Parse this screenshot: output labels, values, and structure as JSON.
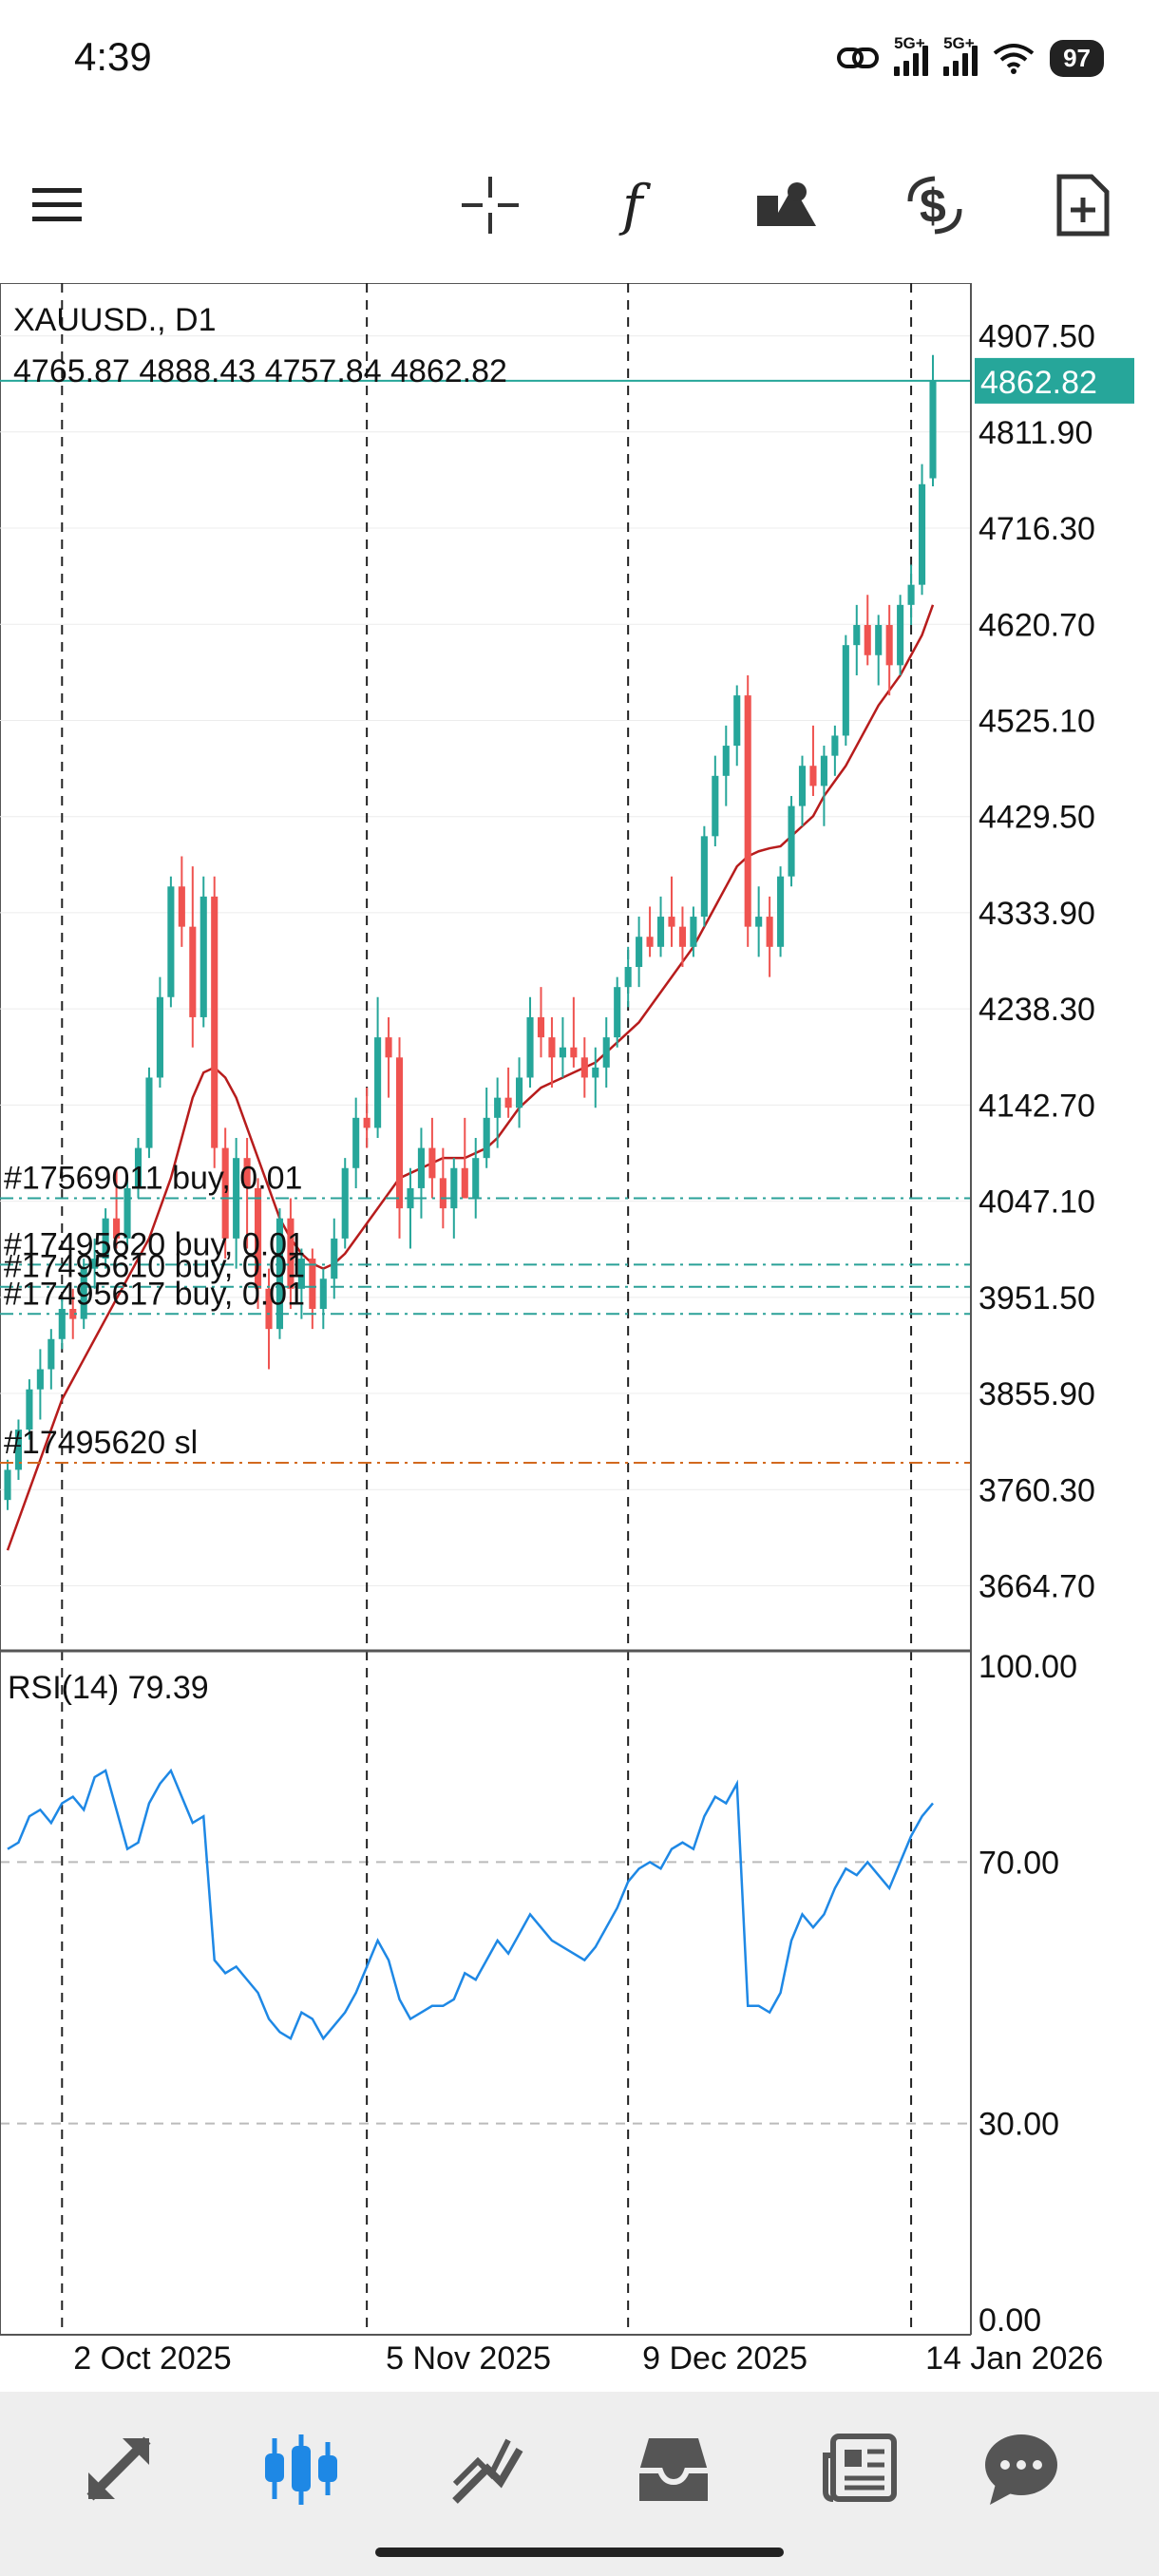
{
  "status_bar": {
    "time": "4:39",
    "signal_1_label": "5G+",
    "signal_2_label": "5G+",
    "battery": "97"
  },
  "toolbar": {
    "icons": [
      "menu-icon",
      "crosshair-icon",
      "indicators-icon",
      "objects-icon",
      "symbols-icon",
      "new-order-icon"
    ]
  },
  "chart": {
    "symbol_label": "XAUUSD., D1",
    "ohlc_line": "4765.87 4888.43 4757.84 4862.82",
    "current_price": "4862.82",
    "price_axis": [
      "4907.50",
      "4811.90",
      "4716.30",
      "4620.70",
      "4525.10",
      "4429.50",
      "4333.90",
      "4238.30",
      "4142.70",
      "4047.10",
      "3951.50",
      "3855.90",
      "3760.30",
      "3664.70"
    ],
    "orders": [
      {
        "label": "#17569011 buy, 0.01",
        "price": 4050,
        "color": "#2aa198"
      },
      {
        "label": "#17495620 buy, 0.01",
        "price": 3984,
        "color": "#2aa198"
      },
      {
        "label": "#17495610 buy, 0.01",
        "price": 3962,
        "color": "#2aa198"
      },
      {
        "label": "#17495617 buy, 0.01",
        "price": 3935,
        "color": "#2aa198"
      },
      {
        "label": "#17495620 sl",
        "price": 3787,
        "color": "#d2691e"
      }
    ],
    "rsi_label": "RSI(14) 79.39",
    "rsi_axis": [
      "100.00",
      "70.00",
      "30.00",
      "0.00"
    ],
    "date_axis": [
      "2 Oct 2025",
      "5 Nov 2025",
      "9 Dec 2025",
      "14 Jan 2026"
    ],
    "colors": {
      "bull": "#26a69a",
      "bear": "#ef5350",
      "ma": "#b71c1c",
      "rsi": "#1e88e5",
      "price_line": "#26a69a"
    }
  },
  "chart_data": {
    "type": "candlestick",
    "title": "XAUUSD., D1",
    "ylim": [
      3600,
      4960
    ],
    "ohlc": [
      [
        3750,
        3790,
        3740,
        3780
      ],
      [
        3780,
        3830,
        3770,
        3820
      ],
      [
        3820,
        3870,
        3810,
        3860
      ],
      [
        3860,
        3900,
        3830,
        3880
      ],
      [
        3880,
        3920,
        3860,
        3910
      ],
      [
        3910,
        3950,
        3900,
        3940
      ],
      [
        3940,
        3960,
        3910,
        3930
      ],
      [
        3930,
        3990,
        3920,
        3980
      ],
      [
        3980,
        4010,
        3960,
        3990
      ],
      [
        3990,
        4040,
        3980,
        4030
      ],
      [
        4030,
        4080,
        4000,
        4010
      ],
      [
        4010,
        4070,
        4000,
        4060
      ],
      [
        4060,
        4110,
        4050,
        4100
      ],
      [
        4100,
        4180,
        4090,
        4170
      ],
      [
        4170,
        4270,
        4160,
        4250
      ],
      [
        4250,
        4370,
        4240,
        4360
      ],
      [
        4360,
        4390,
        4300,
        4320
      ],
      [
        4320,
        4380,
        4200,
        4230
      ],
      [
        4230,
        4370,
        4220,
        4350
      ],
      [
        4350,
        4370,
        4080,
        4100
      ],
      [
        4100,
        4120,
        3990,
        4010
      ],
      [
        4010,
        4110,
        3980,
        4090
      ],
      [
        4090,
        4110,
        4000,
        4060
      ],
      [
        4060,
        4070,
        3940,
        3960
      ],
      [
        3960,
        3980,
        3880,
        3920
      ],
      [
        3920,
        4040,
        3910,
        4030
      ],
      [
        4030,
        4050,
        3940,
        3960
      ],
      [
        3960,
        4000,
        3930,
        3990
      ],
      [
        3990,
        4000,
        3920,
        3940
      ],
      [
        3940,
        3980,
        3920,
        3970
      ],
      [
        3970,
        4030,
        3950,
        4010
      ],
      [
        4010,
        4090,
        4000,
        4080
      ],
      [
        4080,
        4150,
        4060,
        4130
      ],
      [
        4130,
        4160,
        4100,
        4120
      ],
      [
        4120,
        4250,
        4110,
        4210
      ],
      [
        4210,
        4230,
        4150,
        4190
      ],
      [
        4190,
        4210,
        4010,
        4040
      ],
      [
        4040,
        4080,
        4000,
        4060
      ],
      [
        4060,
        4120,
        4030,
        4100
      ],
      [
        4100,
        4130,
        4050,
        4070
      ],
      [
        4070,
        4100,
        4020,
        4040
      ],
      [
        4040,
        4090,
        4010,
        4080
      ],
      [
        4080,
        4130,
        4050,
        4050
      ],
      [
        4050,
        4110,
        4030,
        4090
      ],
      [
        4090,
        4160,
        4080,
        4130
      ],
      [
        4130,
        4170,
        4100,
        4150
      ],
      [
        4150,
        4180,
        4130,
        4140
      ],
      [
        4140,
        4190,
        4120,
        4170
      ],
      [
        4170,
        4250,
        4160,
        4230
      ],
      [
        4230,
        4260,
        4190,
        4210
      ],
      [
        4210,
        4230,
        4160,
        4190
      ],
      [
        4190,
        4230,
        4170,
        4200
      ],
      [
        4200,
        4250,
        4180,
        4190
      ],
      [
        4190,
        4210,
        4150,
        4170
      ],
      [
        4170,
        4200,
        4140,
        4180
      ],
      [
        4180,
        4230,
        4160,
        4210
      ],
      [
        4210,
        4270,
        4200,
        4260
      ],
      [
        4260,
        4300,
        4240,
        4280
      ],
      [
        4280,
        4330,
        4260,
        4310
      ],
      [
        4310,
        4340,
        4290,
        4300
      ],
      [
        4300,
        4350,
        4290,
        4330
      ],
      [
        4330,
        4370,
        4300,
        4320
      ],
      [
        4320,
        4340,
        4280,
        4300
      ],
      [
        4300,
        4340,
        4290,
        4330
      ],
      [
        4330,
        4420,
        4320,
        4410
      ],
      [
        4410,
        4490,
        4400,
        4470
      ],
      [
        4470,
        4520,
        4440,
        4500
      ],
      [
        4500,
        4560,
        4480,
        4550
      ],
      [
        4550,
        4570,
        4300,
        4320
      ],
      [
        4320,
        4360,
        4290,
        4330
      ],
      [
        4330,
        4350,
        4270,
        4300
      ],
      [
        4300,
        4380,
        4290,
        4370
      ],
      [
        4370,
        4450,
        4360,
        4440
      ],
      [
        4440,
        4490,
        4420,
        4480
      ],
      [
        4480,
        4520,
        4450,
        4460
      ],
      [
        4460,
        4500,
        4420,
        4490
      ],
      [
        4490,
        4520,
        4470,
        4510
      ],
      [
        4510,
        4610,
        4500,
        4600
      ],
      [
        4600,
        4640,
        4570,
        4620
      ],
      [
        4620,
        4650,
        4580,
        4590
      ],
      [
        4590,
        4630,
        4560,
        4620
      ],
      [
        4620,
        4640,
        4550,
        4580
      ],
      [
        4580,
        4650,
        4570,
        4640
      ],
      [
        4640,
        4680,
        4620,
        4660
      ],
      [
        4660,
        4780,
        4650,
        4760
      ],
      [
        4765.87,
        4888.43,
        4757.84,
        4862.82
      ]
    ],
    "ma": [
      3700,
      3730,
      3760,
      3790,
      3820,
      3850,
      3870,
      3890,
      3910,
      3930,
      3950,
      3970,
      3990,
      4010,
      4040,
      4070,
      4110,
      4150,
      4175,
      4180,
      4170,
      4150,
      4120,
      4090,
      4060,
      4030,
      4010,
      3995,
      3985,
      3980,
      3985,
      3995,
      4010,
      4025,
      4040,
      4055,
      4070,
      4075,
      4080,
      4085,
      4090,
      4090,
      4090,
      4095,
      4100,
      4110,
      4125,
      4140,
      4150,
      4160,
      4165,
      4170,
      4175,
      4180,
      4185,
      4195,
      4205,
      4215,
      4225,
      4240,
      4255,
      4270,
      4285,
      4300,
      4320,
      4340,
      4360,
      4380,
      4390,
      4395,
      4398,
      4400,
      4410,
      4420,
      4430,
      4450,
      4465,
      4480,
      4500,
      4520,
      4540,
      4555,
      4570,
      4590,
      4610,
      4640
    ],
    "rsi": [
      72,
      73,
      77,
      78,
      76,
      79,
      80,
      78,
      83,
      84,
      78,
      72,
      73,
      79,
      82,
      84,
      80,
      76,
      77,
      55,
      53,
      54,
      52,
      50,
      46,
      44,
      43,
      47,
      46,
      43,
      45,
      47,
      50,
      54,
      58,
      55,
      49,
      46,
      47,
      48,
      48,
      49,
      53,
      52,
      55,
      58,
      56,
      59,
      62,
      60,
      58,
      57,
      56,
      55,
      57,
      60,
      63,
      67,
      69,
      70,
      69,
      72,
      73,
      72,
      77,
      80,
      79,
      82,
      48,
      48,
      47,
      50,
      58,
      62,
      60,
      62,
      66,
      69,
      68,
      70,
      68,
      66,
      70,
      74,
      77,
      79
    ],
    "rsi_ylim": [
      0,
      100
    ],
    "rsi_levels": [
      70,
      30
    ],
    "dates": [
      "2 Oct 2025",
      "5 Nov 2025",
      "9 Dec 2025",
      "14 Jan 2026"
    ],
    "grid": true
  }
}
